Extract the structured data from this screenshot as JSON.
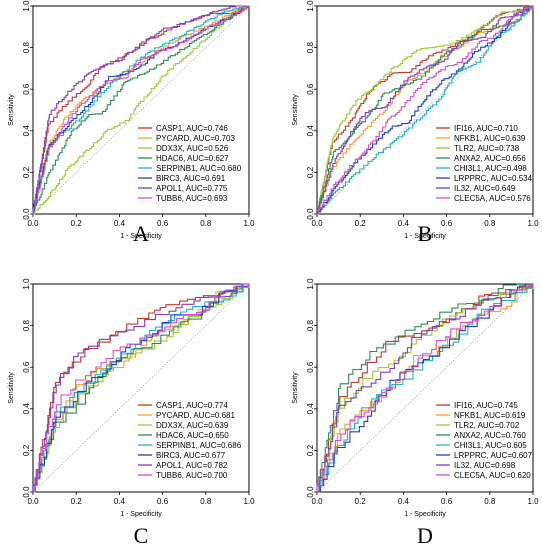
{
  "chart_data": [
    {
      "type": "line",
      "panel_label": "A",
      "xlabel": "1 - Specificity",
      "ylabel": "Sensitivity",
      "xlim": [
        0,
        1
      ],
      "ylim": [
        0,
        1
      ],
      "xticks": [
        "0.0",
        "0.2",
        "0.4",
        "0.6",
        "0.8",
        "1.0"
      ],
      "yticks": [
        "0.0",
        "0.2",
        "0.4",
        "0.6",
        "0.8",
        "1.0"
      ],
      "diagonal": true,
      "legend_position": "bottom-right",
      "series": [
        {
          "name": "CASP1, AUC=0.746",
          "color": "#c0392b",
          "auc": 0.746
        },
        {
          "name": "PYCARD, AUC=0.703",
          "color": "#f0a030",
          "auc": 0.703
        },
        {
          "name": "DDX3X, AUC=0.526",
          "color": "#9acd32",
          "auc": 0.526
        },
        {
          "name": "HDAC6, AUC=0.627",
          "color": "#2e8b57",
          "auc": 0.627
        },
        {
          "name": "SERPINB1, AUC=0.680",
          "color": "#20b2c8",
          "auc": 0.68
        },
        {
          "name": "BIRC3, AUC=0.691",
          "color": "#1f3fbf",
          "auc": 0.691
        },
        {
          "name": "APOL1, AUC=0.775",
          "color": "#7b3fbf",
          "auc": 0.775
        },
        {
          "name": "TUBB6, AUC=0.693",
          "color": "#d04fcf",
          "auc": 0.693
        }
      ]
    },
    {
      "type": "line",
      "panel_label": "B",
      "xlabel": "1 - Specificity",
      "ylabel": "Sensitivity",
      "xlim": [
        0,
        1
      ],
      "ylim": [
        0,
        1
      ],
      "xticks": [
        "0.0",
        "0.2",
        "0.4",
        "0.6",
        "0.8",
        "1.0"
      ],
      "yticks": [
        "0.0",
        "0.2",
        "0.4",
        "0.6",
        "0.8",
        "1.0"
      ],
      "diagonal": true,
      "legend_position": "bottom-right",
      "series": [
        {
          "name": "IFI16, AUC=0.710",
          "color": "#c0392b",
          "auc": 0.71
        },
        {
          "name": "NFKB1, AUC=0.639",
          "color": "#f0a030",
          "auc": 0.639
        },
        {
          "name": "TLR2, AUC=0.738",
          "color": "#9acd32",
          "auc": 0.738
        },
        {
          "name": "ANXA2, AUC=0.656",
          "color": "#2e8b57",
          "auc": 0.656
        },
        {
          "name": "CHI3L1, AUC=0.498",
          "color": "#20b2c8",
          "auc": 0.498
        },
        {
          "name": "LRPPRC, AUC=0.534",
          "color": "#1f3fbf",
          "auc": 0.534
        },
        {
          "name": "IL32, AUC=0.649",
          "color": "#7b3fbf",
          "auc": 0.649
        },
        {
          "name": "CLEC5A, AUC=0.576",
          "color": "#d04fcf",
          "auc": 0.576
        }
      ]
    },
    {
      "type": "line",
      "panel_label": "C",
      "xlabel": "1 - Specificity",
      "ylabel": "Sensitivity",
      "xlim": [
        0,
        1
      ],
      "ylim": [
        0,
        1
      ],
      "xticks": [
        "0.0",
        "0.2",
        "0.4",
        "0.6",
        "0.8",
        "1.0"
      ],
      "yticks": [
        "0.0",
        "0.2",
        "0.4",
        "0.6",
        "0.8",
        "1.0"
      ],
      "diagonal": true,
      "legend_position": "bottom-right",
      "series": [
        {
          "name": "CASP1, AUC=0.774",
          "color": "#c0392b",
          "auc": 0.774
        },
        {
          "name": "PYCARD, AUC=0.681",
          "color": "#f0a030",
          "auc": 0.681
        },
        {
          "name": "DDX3X, AUC=0.639",
          "color": "#9acd32",
          "auc": 0.639
        },
        {
          "name": "HDAC6, AUC=0.650",
          "color": "#2e8b57",
          "auc": 0.65
        },
        {
          "name": "SERPINB1, AUC=0.686",
          "color": "#20b2c8",
          "auc": 0.686
        },
        {
          "name": "BIRC3, AUC=0.677",
          "color": "#1f3fbf",
          "auc": 0.677
        },
        {
          "name": "APOL1, AUC=0.782",
          "color": "#7b3fbf",
          "auc": 0.782
        },
        {
          "name": "TUBB6, AUC=0.700",
          "color": "#d04fcf",
          "auc": 0.7
        }
      ]
    },
    {
      "type": "line",
      "panel_label": "D",
      "xlabel": "1 - Specificity",
      "ylabel": "Sensitivity",
      "xlim": [
        0,
        1
      ],
      "ylim": [
        0,
        1
      ],
      "xticks": [
        "0.0",
        "0.2",
        "0.4",
        "0.6",
        "0.8",
        "1.0"
      ],
      "yticks": [
        "0.0",
        "0.2",
        "0.4",
        "0.6",
        "0.8",
        "1.0"
      ],
      "diagonal": true,
      "legend_position": "bottom-right",
      "series": [
        {
          "name": "IFI16, AUC=0.745",
          "color": "#c0392b",
          "auc": 0.745
        },
        {
          "name": "NFKB1, AUC=0.619",
          "color": "#f0a030",
          "auc": 0.619
        },
        {
          "name": "TLR2, AUC=0.702",
          "color": "#9acd32",
          "auc": 0.702
        },
        {
          "name": "ANXA2, AUC=0.760",
          "color": "#2e8b57",
          "auc": 0.76
        },
        {
          "name": "CHI3L1, AUC=0.605",
          "color": "#20b2c8",
          "auc": 0.605
        },
        {
          "name": "LRPPRC, AUC=0.607",
          "color": "#1f3fbf",
          "auc": 0.607
        },
        {
          "name": "IL32, AUC=0.698",
          "color": "#7b3fbf",
          "auc": 0.698
        },
        {
          "name": "CLEC5A, AUC=0.620",
          "color": "#d04fcf",
          "auc": 0.62
        }
      ]
    }
  ]
}
